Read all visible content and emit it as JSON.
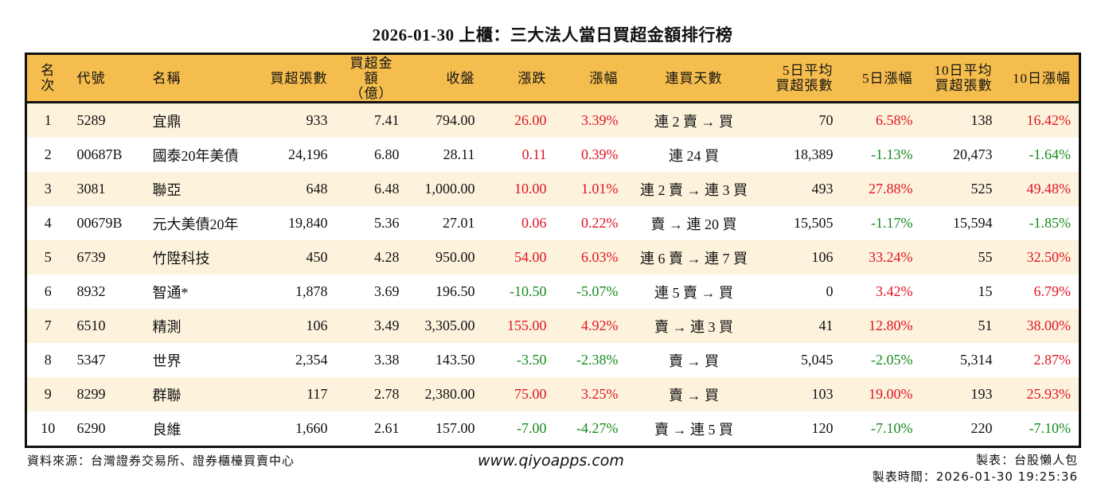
{
  "title": "2026-01-30 上櫃：三大法人當日買超金額排行榜",
  "columns": [
    "名次",
    "代號",
    "名稱",
    "買超張數",
    "買超金額\n（億）",
    "收盤",
    "漲跌",
    "漲幅",
    "連買天數",
    "5日平均\n買超張數",
    "5日漲幅",
    "10日平均\n買超張數",
    "10日漲幅"
  ],
  "colors": {
    "header": "#f5bd4e",
    "row_alt": "#fdf3dd",
    "up": "#e01422",
    "down": "#178a1e"
  },
  "rows": [
    [
      "1",
      "5289",
      "宜鼎",
      "933",
      "7.41",
      "794.00",
      "26.00",
      "3.39%",
      "連 2 賣 → 買",
      "70",
      "6.58%",
      "138",
      "16.42%"
    ],
    [
      "2",
      "00687B",
      "國泰20年美債",
      "24,196",
      "6.80",
      "28.11",
      "0.11",
      "0.39%",
      "連 24 買",
      "18,389",
      "-1.13%",
      "20,473",
      "-1.64%"
    ],
    [
      "3",
      "3081",
      "聯亞",
      "648",
      "6.48",
      "1,000.00",
      "10.00",
      "1.01%",
      "連 2 賣 → 連 3 買",
      "493",
      "27.88%",
      "525",
      "49.48%"
    ],
    [
      "4",
      "00679B",
      "元大美債20年",
      "19,840",
      "5.36",
      "27.01",
      "0.06",
      "0.22%",
      "賣 → 連 20 買",
      "15,505",
      "-1.17%",
      "15,594",
      "-1.85%"
    ],
    [
      "5",
      "6739",
      "竹陞科技",
      "450",
      "4.28",
      "950.00",
      "54.00",
      "6.03%",
      "連 6 賣 → 連 7 買",
      "106",
      "33.24%",
      "55",
      "32.50%"
    ],
    [
      "6",
      "8932",
      "智通*",
      "1,878",
      "3.69",
      "196.50",
      "-10.50",
      "-5.07%",
      "連 5 賣 → 買",
      "0",
      "3.42%",
      "15",
      "6.79%"
    ],
    [
      "7",
      "6510",
      "精測",
      "106",
      "3.49",
      "3,305.00",
      "155.00",
      "4.92%",
      "賣 → 連 3 買",
      "41",
      "12.80%",
      "51",
      "38.00%"
    ],
    [
      "8",
      "5347",
      "世界",
      "2,354",
      "3.38",
      "143.50",
      "-3.50",
      "-2.38%",
      "賣 → 買",
      "5,045",
      "-2.05%",
      "5,314",
      "2.87%"
    ],
    [
      "9",
      "8299",
      "群聯",
      "117",
      "2.78",
      "2,380.00",
      "75.00",
      "3.25%",
      "賣 → 買",
      "103",
      "19.00%",
      "193",
      "25.93%"
    ],
    [
      "10",
      "6290",
      "良維",
      "1,660",
      "2.61",
      "157.00",
      "-7.00",
      "-4.27%",
      "賣 → 連 5 買",
      "120",
      "-7.10%",
      "220",
      "-7.10%"
    ]
  ],
  "footer": {
    "source": "資料來源：台灣證券交易所、證券櫃檯買賣中心",
    "website": "www.qiyoapps.com",
    "author": "製表：台股懶人包",
    "time": "製表時間：2026-01-30 19:25:36"
  }
}
